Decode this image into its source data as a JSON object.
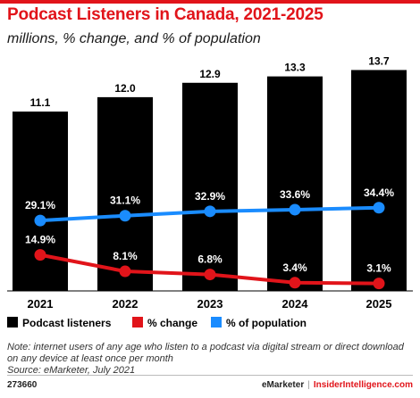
{
  "title": "Podcast Listeners in Canada, 2021-2025",
  "subtitle": "millions, % change, and % of population",
  "colors": {
    "accent": "#e1141a",
    "bars": "#000000",
    "change_line": "#e1141a",
    "population_line": "#1a8cff"
  },
  "chart_data": {
    "type": "bar",
    "categories": [
      "2021",
      "2022",
      "2023",
      "2024",
      "2025"
    ],
    "series": [
      {
        "name": "Podcast listeners",
        "type": "bar",
        "values": [
          11.1,
          12.0,
          12.9,
          13.3,
          13.7
        ],
        "labels": [
          "11.1",
          "12.0",
          "12.9",
          "13.3",
          "13.7"
        ]
      },
      {
        "name": "% change",
        "type": "line",
        "values": [
          14.9,
          8.1,
          6.8,
          3.4,
          3.1
        ],
        "labels": [
          "14.9%",
          "8.1%",
          "6.8%",
          "3.4%",
          "3.1%"
        ]
      },
      {
        "name": "% of population",
        "type": "line",
        "values": [
          29.1,
          31.1,
          32.9,
          33.6,
          34.4
        ],
        "labels": [
          "29.1%",
          "31.1%",
          "32.9%",
          "33.6%",
          "34.4%"
        ]
      }
    ],
    "legend": [
      "Podcast listeners",
      "% change",
      "% of population"
    ],
    "legend_position": "bottom",
    "grid": false
  },
  "note": "Note: internet users of any age who listen to a podcast via digital stream or direct download on any device at least once per month",
  "source": "Source: eMarketer, July 2021",
  "footer": {
    "id": "273660",
    "brand_left": "eMarketer",
    "separator": "|",
    "brand_right": "InsiderIntelligence.com"
  }
}
